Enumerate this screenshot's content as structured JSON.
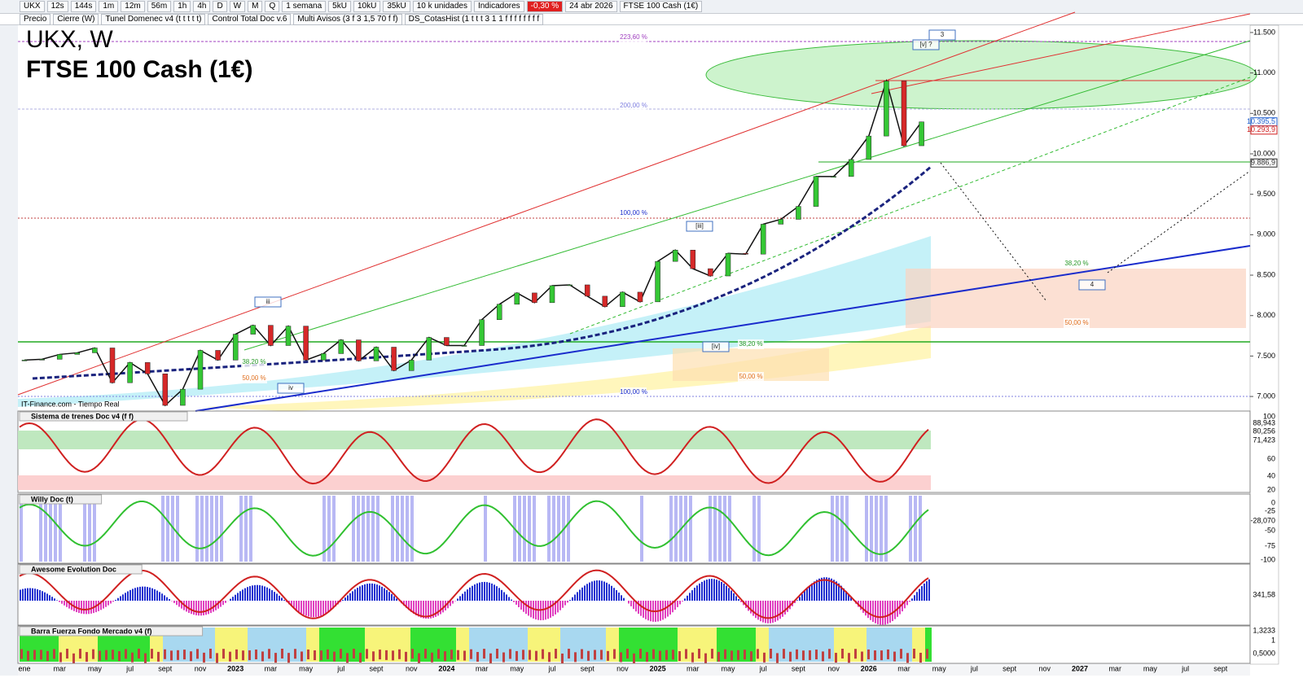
{
  "toolbar": {
    "items": [
      "UKX",
      "12s",
      "144s",
      "1m",
      "12m",
      "56m",
      "1h",
      "4h",
      "D",
      "W",
      "M",
      "Q",
      "1 semana",
      "5kU",
      "10kU",
      "35kU",
      "10 k unidades",
      "Indicadores"
    ],
    "change": "-0,30 %",
    "date": "24 abr 2026",
    "instrument": "FTSE 100 Cash (1€)"
  },
  "studies": [
    "Precio",
    "Cierre (W)",
    "Tunel Domenec v4 (t t t t t)",
    "Control Total Doc v.6",
    "Multi Avisos (3 f 3 1,5 70 f f)",
    "DS_CotasHist (1 t t t 3 1 1 f f f f f f f f"
  ],
  "chart_data": {
    "type": "line",
    "title": "UKX, W",
    "subtitle": "FTSE 100 Cash (1€)",
    "source": "IT-Finance.com - Tiempo Real",
    "color": "#111111",
    "values": [
      7450,
      7460,
      7520,
      7540,
      7600,
      7170,
      7420,
      7280,
      6890,
      7090,
      7570,
      7450,
      7770,
      7880,
      7630,
      7870,
      7450,
      7530,
      7700,
      7440,
      7610,
      7320,
      7450,
      7730,
      7630,
      7630,
      7950,
      8140,
      8280,
      8160,
      8370,
      8380,
      8240,
      8110,
      8290,
      8170,
      8670,
      8810,
      8580,
      8490,
      8770,
      8760,
      9130,
      9190,
      9350,
      9720,
      9720,
      9930,
      10220,
      10900,
      10100,
      10395
    ],
    "ylim": [
      6840,
      11600
    ],
    "yticks": [
      {
        "value": 7000,
        "label": "7.000"
      },
      {
        "value": 7500,
        "label": "7.500"
      },
      {
        "value": 8000,
        "label": "8.000"
      },
      {
        "value": 8500,
        "label": "8.500"
      },
      {
        "value": 9000,
        "label": "9.000"
      },
      {
        "value": 9500,
        "label": "9.500"
      },
      {
        "value": 10000,
        "label": "10.000"
      },
      {
        "value": 10500,
        "label": "10.500"
      },
      {
        "value": 11000,
        "label": "11.000"
      },
      {
        "value": 11500,
        "label": "11.500"
      }
    ],
    "price_labels": [
      {
        "value": 10395.5,
        "label": "10.395,5"
      },
      {
        "value": 10293.9,
        "label": "10.293,9"
      },
      {
        "value": 9886.9,
        "label": "9.886,9"
      }
    ],
    "annotations": [
      "223,60 %",
      "200,00 %",
      "100,00 %",
      "100,00 %",
      "38,20 %",
      "50,00 %",
      "38,20 %",
      "50,00 %",
      "38,20 %",
      "50,00 %",
      "3",
      "[v] ?",
      "[iii]",
      "iii",
      "iv",
      "[iv]",
      "4"
    ],
    "x_labels": [
      "ene",
      "mar",
      "may",
      "jul",
      "sept",
      "nov",
      "2023",
      "mar",
      "may",
      "jul",
      "sept",
      "nov",
      "2024",
      "mar",
      "may",
      "jul",
      "sept",
      "nov",
      "2025",
      "mar",
      "may",
      "jul",
      "sept",
      "nov",
      "2026",
      "mar",
      "may",
      "jul",
      "sept",
      "nov",
      "2027",
      "mar",
      "may",
      "jul",
      "sept"
    ]
  },
  "panels": [
    {
      "title": "Sistema de trenes Doc v4 (f f)",
      "labels": [
        "100",
        "88,943",
        "80,256",
        "71,423",
        "60",
        "40",
        "20",
        "0"
      ]
    },
    {
      "title": "Willy Doc (t)",
      "labels": [
        "-25",
        "-28,070",
        "-50",
        "-75",
        "-100"
      ]
    },
    {
      "title": "Awesome Evolution Doc",
      "labels": [
        "341,58"
      ]
    },
    {
      "title": "Barra Fuerza Fondo Mercado v4 (f)",
      "labels": [
        "1,3233",
        "1",
        "0,5000"
      ]
    }
  ]
}
